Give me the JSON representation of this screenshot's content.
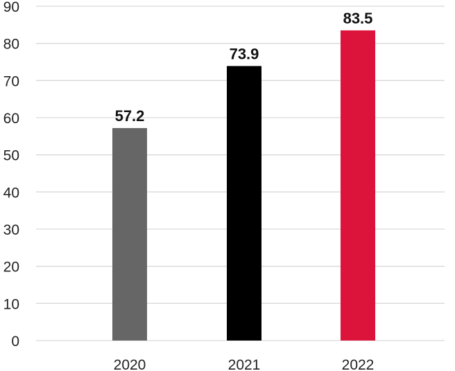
{
  "chart_data": {
    "type": "bar",
    "title": "",
    "xlabel": "",
    "ylabel": "",
    "categories": [
      "2020",
      "2021",
      "2022"
    ],
    "values": [
      57.2,
      73.9,
      83.5
    ],
    "value_labels": [
      "57.2",
      "73.9",
      "83.5"
    ],
    "bar_colors": [
      "#666666",
      "#000000",
      "#dc143c"
    ],
    "ylim": [
      0,
      90
    ],
    "y_ticks": [
      0,
      10,
      20,
      30,
      40,
      50,
      60,
      70,
      80,
      90
    ],
    "grid": true,
    "legend": "none"
  }
}
